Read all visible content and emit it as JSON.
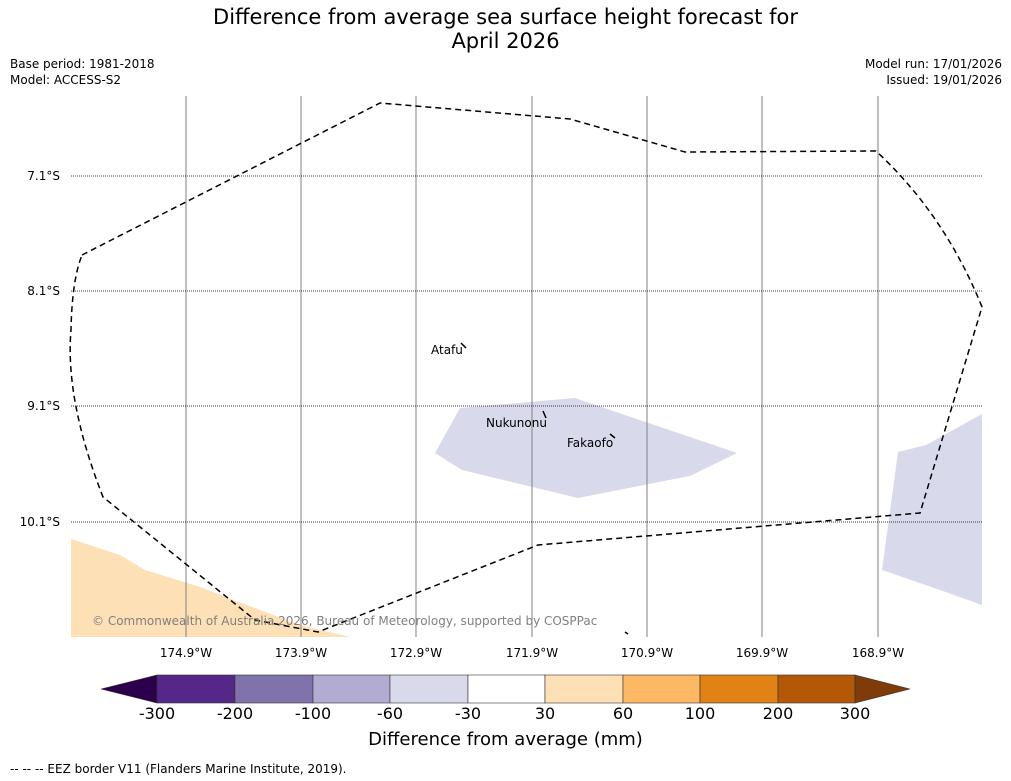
{
  "title": {
    "line1": "Difference from average sea surface height forecast for",
    "line2": "April 2026"
  },
  "meta": {
    "base_period": "Base period: 1981-2018",
    "model": "Model: ACCESS-S2",
    "model_run": "Model run: 17/01/2026",
    "issued": "Issued: 19/01/2026"
  },
  "axes": {
    "latitudes": [
      "7.1°S",
      "8.1°S",
      "9.1°S",
      "10.1°S"
    ],
    "longitudes": [
      "174.9°W",
      "173.9°W",
      "172.9°W",
      "171.9°W",
      "170.9°W",
      "169.9°W",
      "168.9°W"
    ]
  },
  "places": {
    "atafu": "Atafu",
    "nukunonu": "Nukunonu",
    "fakaofo": "Fakaofo"
  },
  "copyright": "© Commonwealth of Australia 2026, Bureau of Meteorology, supported by COSPPac",
  "colorbar": {
    "label": "Difference from average (mm)",
    "ticks": [
      "-300",
      "-200",
      "-100",
      "-60",
      "-30",
      "30",
      "60",
      "100",
      "200",
      "300"
    ],
    "colors": {
      "lt300": "#2d004b",
      "b1": "#542788",
      "b2": "#8073ac",
      "b3": "#b2abd2",
      "b4": "#d8daeb",
      "b5": "#ffffff",
      "b6": "#fee0b6",
      "b7": "#fdb863",
      "b8": "#e08214",
      "b9": "#b35806",
      "gt300": "#7f3b08"
    }
  },
  "footer": "--  --  -- EEZ border V11 (Flanders Marine Institute, 2019)."
}
